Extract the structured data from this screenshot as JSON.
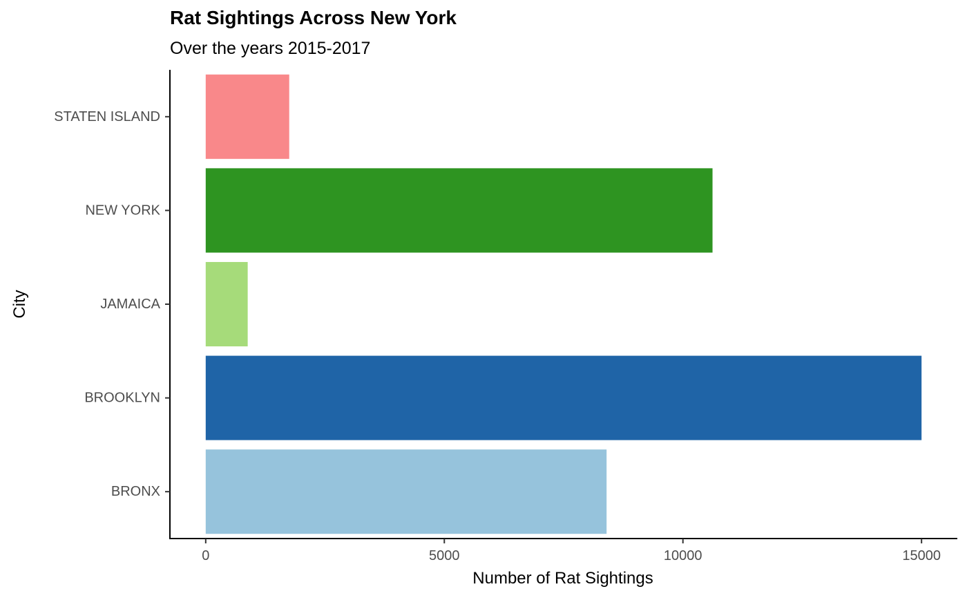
{
  "chart_data": {
    "type": "bar",
    "orientation": "horizontal",
    "title": "Rat Sightings Across New York",
    "subtitle": "Over the years 2015-2017",
    "xlabel": "Number of Rat Sightings",
    "ylabel": "City",
    "categories": [
      "BRONX",
      "BROOKLYN",
      "JAMAICA",
      "NEW YORK",
      "STATEN ISLAND"
    ],
    "values": [
      8400,
      15000,
      880,
      10620,
      1750
    ],
    "colors": [
      "#96c3dc",
      "#1f64a7",
      "#a6db7a",
      "#2e9421",
      "#f9888a"
    ],
    "xlim": [
      -750,
      15750
    ],
    "xticks": [
      0,
      5000,
      10000,
      15000
    ],
    "xtick_labels": [
      "0",
      "5000",
      "10000",
      "15000"
    ],
    "grid": false,
    "legend": "none"
  }
}
